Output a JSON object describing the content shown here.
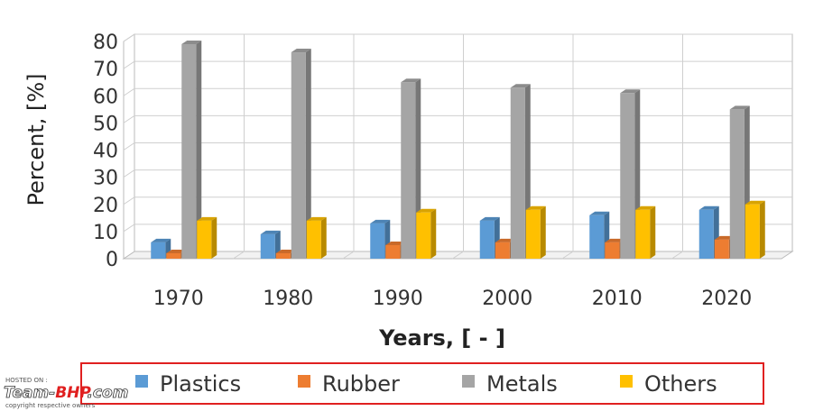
{
  "chart_data": {
    "type": "bar",
    "title": "",
    "xlabel": "Years, [ - ]",
    "ylabel": "Percent, [%]",
    "ylim": [
      0,
      80
    ],
    "yticks": [
      0,
      10,
      20,
      30,
      40,
      50,
      60,
      70,
      80
    ],
    "grid": true,
    "legend_position": "bottom",
    "categories": [
      "1970",
      "1980",
      "1990",
      "2000",
      "2010",
      "2020"
    ],
    "series": [
      {
        "name": "Plastics",
        "color": "#5B9BD5",
        "values": [
          6,
          9,
          13,
          14,
          16,
          18
        ]
      },
      {
        "name": "Rubber",
        "color": "#ED7D31",
        "values": [
          2,
          2,
          5,
          6,
          6,
          7
        ]
      },
      {
        "name": "Metals",
        "color": "#A5A5A5",
        "values": [
          79,
          76,
          65,
          63,
          61,
          55
        ]
      },
      {
        "name": "Others",
        "color": "#FFC000",
        "values": [
          14,
          14,
          17,
          18,
          18,
          20
        ]
      }
    ]
  },
  "watermark": {
    "hosted_on": "HOSTED ON :",
    "brand_part1": "Team-",
    "brand_part2": "BHP",
    "brand_part3": ".com",
    "copyright": "copyright respective owners"
  }
}
